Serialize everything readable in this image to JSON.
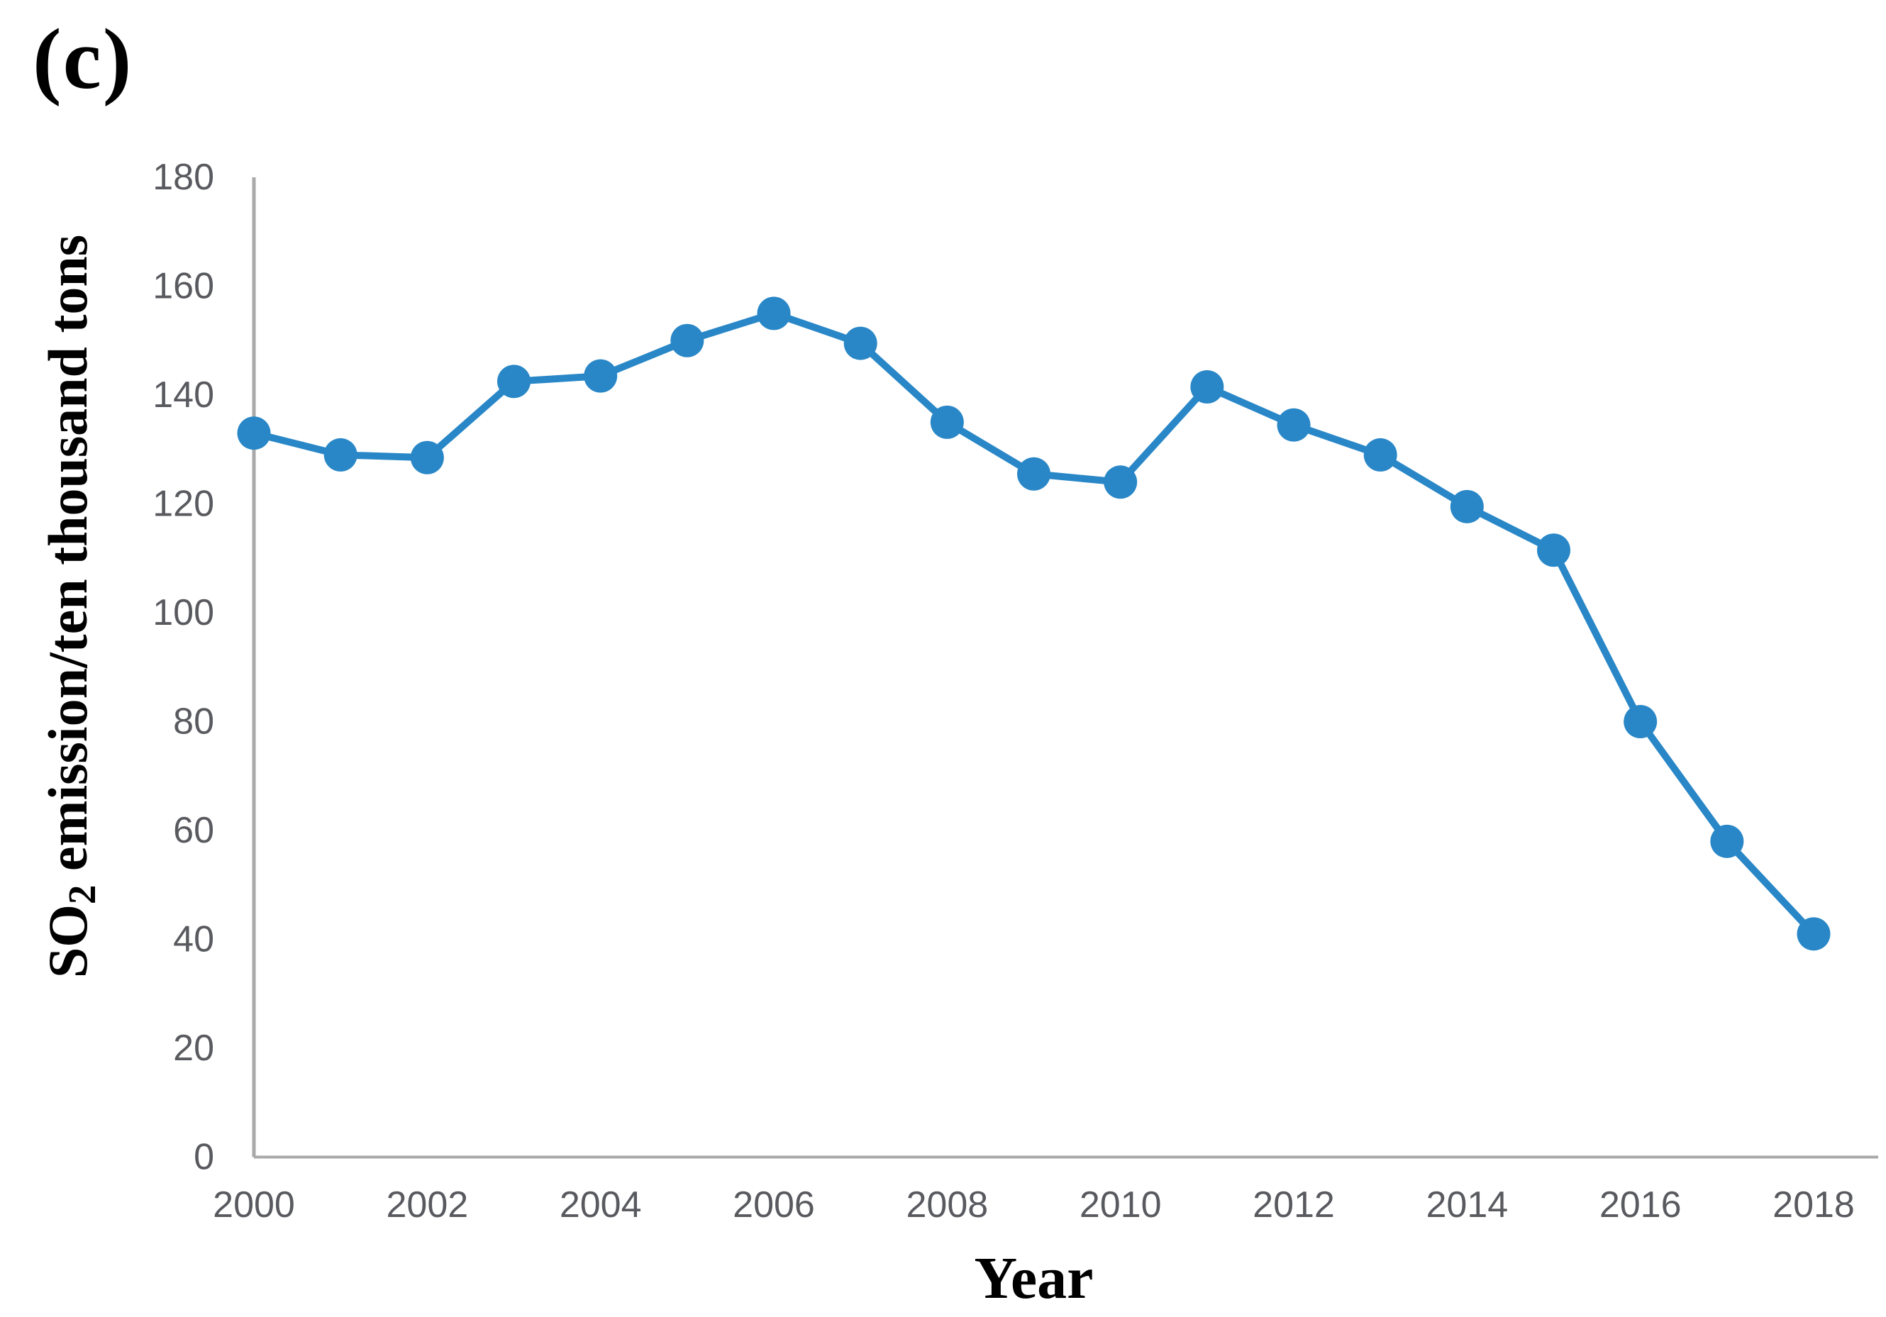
{
  "panel_label": "(c)",
  "chart_data": {
    "type": "line",
    "title": "",
    "xlabel": "Year",
    "ylabel": "SO2 emission/ten thousand tons",
    "ylabel_parts": {
      "prefix": "SO",
      "subscript": "2",
      "suffix": " emission/ten thousand tons"
    },
    "x": [
      2000,
      2001,
      2002,
      2003,
      2004,
      2005,
      2006,
      2007,
      2008,
      2009,
      2010,
      2011,
      2012,
      2013,
      2014,
      2015,
      2016,
      2017,
      2018
    ],
    "values": [
      133,
      129,
      128.5,
      142.5,
      143.5,
      150,
      155,
      149.5,
      135,
      125.5,
      124,
      141.5,
      134.5,
      129,
      119.5,
      111.5,
      80,
      58,
      41
    ],
    "series_name": "SO2 emission",
    "xlim": [
      2000,
      2018
    ],
    "ylim": [
      0,
      180
    ],
    "yticks": [
      0,
      20,
      40,
      60,
      80,
      100,
      120,
      140,
      160,
      180
    ],
    "xticks": [
      2000,
      2002,
      2004,
      2006,
      2008,
      2010,
      2012,
      2014,
      2016,
      2018
    ],
    "grid": false,
    "legend_position": "none",
    "marker": "circle",
    "line_color": "#2987c7",
    "marker_color": "#2987c7",
    "axis_color": "#a9a9a9",
    "tick_label_color": "#595a5f",
    "text_color": "#000000",
    "background_color": "#ffffff"
  }
}
